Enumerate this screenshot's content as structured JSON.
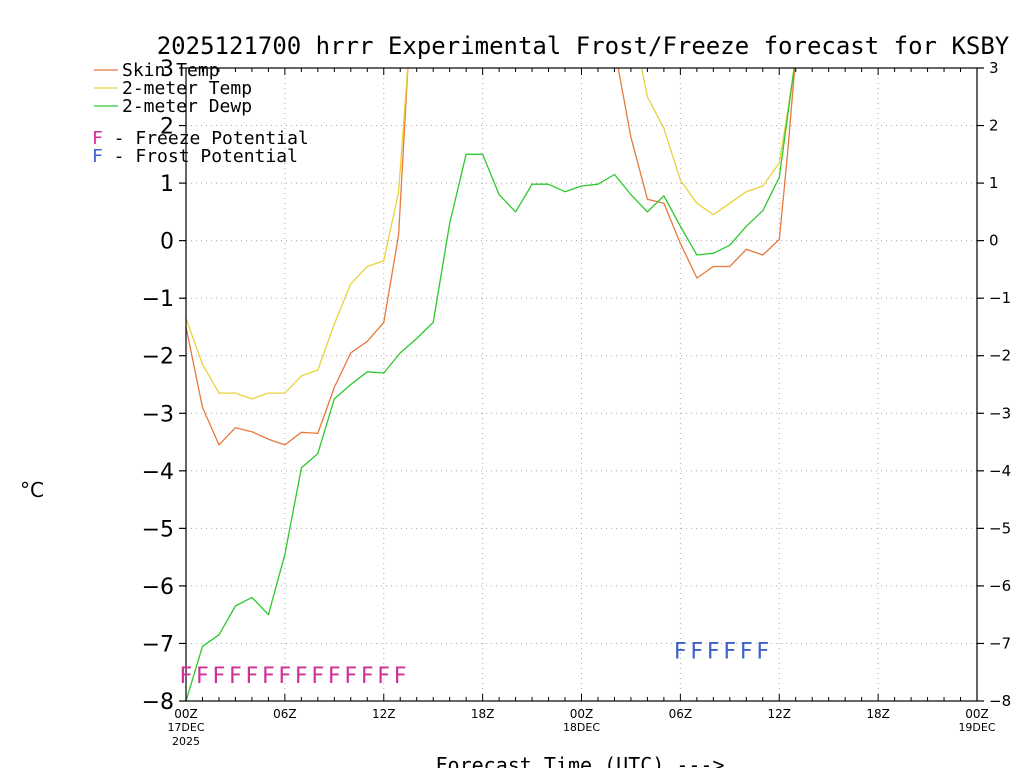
{
  "chart_data": {
    "type": "line",
    "title": "2025121700 hrrr Experimental Frost/Freeze forecast for KSBY",
    "ylabel": "°C",
    "xlabel": "Forecast Time (UTC) --->",
    "ylim": [
      -8,
      3
    ],
    "xlim": [
      0,
      48
    ],
    "y_ticks": [
      -8,
      -7,
      -6,
      -5,
      -4,
      -3,
      -2,
      -1,
      0,
      1,
      2,
      3
    ],
    "y_tick_labels": [
      "−8",
      "−7",
      "−6",
      "−5",
      "−4",
      "−3",
      "−2",
      "−1",
      "0",
      "1",
      "2",
      "3"
    ],
    "x_ticks": [
      {
        "hour": 0,
        "label": "00Z",
        "sub1": "17DEC",
        "sub2": "2025"
      },
      {
        "hour": 6,
        "label": "06Z",
        "sub1": "",
        "sub2": ""
      },
      {
        "hour": 12,
        "label": "12Z",
        "sub1": "",
        "sub2": ""
      },
      {
        "hour": 18,
        "label": "18Z",
        "sub1": "",
        "sub2": ""
      },
      {
        "hour": 24,
        "label": "00Z",
        "sub1": "18DEC",
        "sub2": ""
      },
      {
        "hour": 30,
        "label": "06Z",
        "sub1": "",
        "sub2": ""
      },
      {
        "hour": 36,
        "label": "12Z",
        "sub1": "",
        "sub2": ""
      },
      {
        "hour": 42,
        "label": "18Z",
        "sub1": "",
        "sub2": ""
      },
      {
        "hour": 48,
        "label": "00Z",
        "sub1": "19DEC",
        "sub2": ""
      }
    ],
    "grid": true,
    "legend_position": "top-left",
    "series": [
      {
        "name": "Skin Temp",
        "color": "#e8783c",
        "hours": [
          0,
          1,
          2,
          3,
          4,
          5,
          6,
          7,
          8,
          9,
          10,
          11,
          12,
          12.9,
          13.5,
          26.1,
          27,
          28,
          29,
          30,
          31,
          32,
          33,
          34,
          35,
          36,
          36.5,
          37
        ],
        "values": [
          -1.5,
          -2.9,
          -3.55,
          -3.25,
          -3.32,
          -3.45,
          -3.55,
          -3.33,
          -3.35,
          -2.55,
          -1.95,
          -1.75,
          -1.42,
          0.1,
          3.2,
          3.2,
          1.8,
          0.72,
          0.65,
          -0.05,
          -0.65,
          -0.45,
          -0.45,
          -0.15,
          -0.25,
          0.02,
          1.5,
          3.2
        ]
      },
      {
        "name": "2-meter Temp",
        "color": "#e8d23c",
        "hours": [
          0,
          1,
          2,
          3,
          4,
          5,
          6,
          7,
          8,
          9,
          10,
          11,
          12,
          12.9,
          13.5,
          27.5,
          28,
          29,
          30,
          31,
          32,
          33,
          34,
          35,
          36,
          36.6,
          37
        ],
        "values": [
          -1.35,
          -2.15,
          -2.65,
          -2.65,
          -2.75,
          -2.65,
          -2.65,
          -2.35,
          -2.25,
          -1.45,
          -0.75,
          -0.45,
          -0.35,
          0.85,
          3.2,
          3.2,
          2.5,
          1.95,
          1.05,
          0.65,
          0.45,
          0.65,
          0.85,
          0.95,
          1.35,
          2.4,
          3.2
        ]
      },
      {
        "name": "2-meter Dewp",
        "color": "#2dc82d",
        "hours": [
          0,
          1,
          2,
          3,
          4,
          5,
          6,
          7,
          8,
          9,
          10,
          11,
          12,
          13,
          14,
          15,
          16,
          17,
          18,
          19,
          20,
          21,
          22,
          23,
          24,
          25,
          26,
          27,
          28,
          29,
          30,
          31,
          32,
          33,
          34,
          35,
          36,
          37
        ],
        "values": [
          -8.0,
          -7.05,
          -6.85,
          -6.35,
          -6.2,
          -6.5,
          -5.45,
          -3.95,
          -3.7,
          -2.75,
          -2.5,
          -2.28,
          -2.3,
          -1.95,
          -1.7,
          -1.42,
          0.3,
          1.5,
          1.5,
          0.8,
          0.5,
          0.98,
          0.98,
          0.85,
          0.95,
          0.98,
          1.15,
          0.8,
          0.5,
          0.78,
          0.25,
          -0.25,
          -0.22,
          -0.08,
          0.25,
          0.52,
          1.1,
          3.2
        ]
      }
    ],
    "legend_entries": [
      {
        "label": "Skin Temp",
        "color": "#e8783c"
      },
      {
        "label": "2-meter Temp",
        "color": "#e8d23c"
      },
      {
        "label": "2-meter Dewp",
        "color": "#2dc82d"
      }
    ],
    "potential_legend": [
      {
        "symbol": "F",
        "text": " - Freeze Potential",
        "color": "#d02f96"
      },
      {
        "symbol": "F",
        "text": " - Frost Potential",
        "color": "#3f5fcf"
      }
    ],
    "freeze_markers": {
      "text": "FFFFFFFFFFFFFF",
      "color": "#d02f96",
      "start_hour": 0,
      "end_hour": 13,
      "y_level": -7.55
    },
    "frost_markers": {
      "text": "FFFFFF",
      "color": "#3f5fcf",
      "start_hour": 30,
      "end_hour": 35,
      "y_level": -7.12
    }
  }
}
